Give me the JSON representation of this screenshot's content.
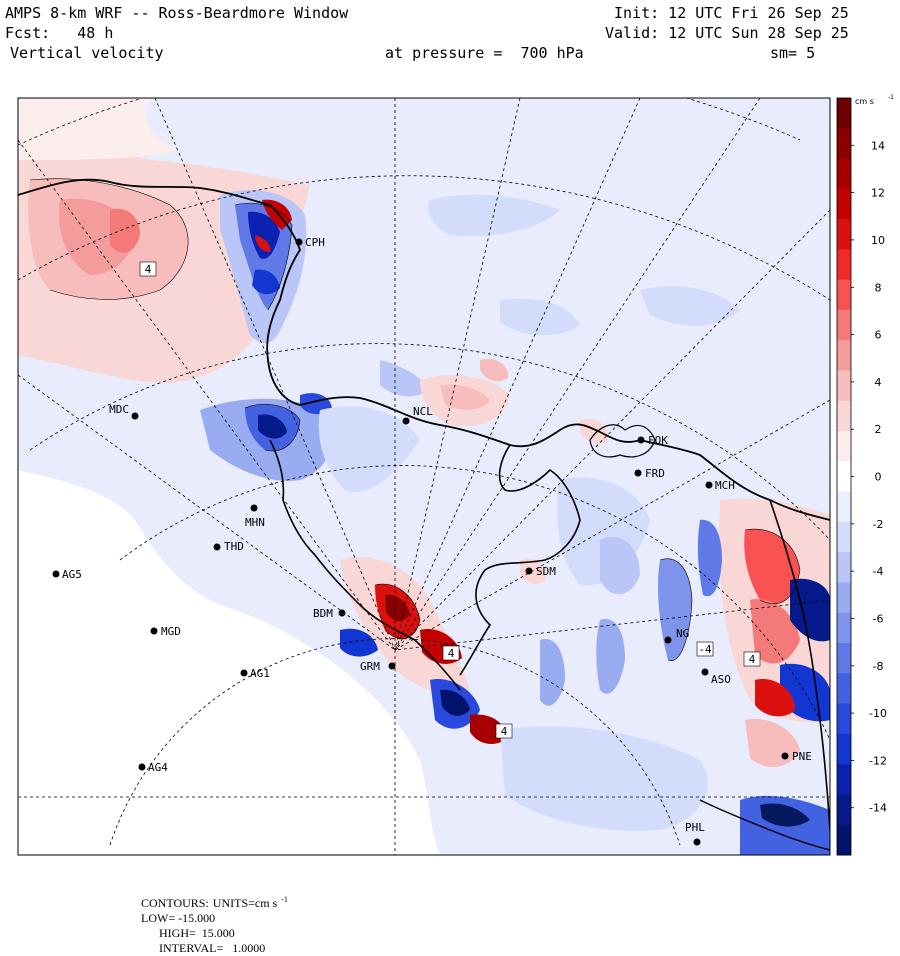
{
  "header": {
    "model_title": "AMPS 8-km WRF -- Ross-Beardmore Window",
    "init": "Init: 12 UTC Fri 26 Sep 25",
    "forecast": "Fcst:   48 h",
    "valid": "Valid: 12 UTC Sun 28 Sep 25",
    "field": "Vertical velocity",
    "pressure": "at pressure =  700 hPa",
    "smoothing": "sm= 5"
  },
  "colorbar": {
    "units_label": "cm s",
    "units_exp": "-1",
    "ticks": [
      "14",
      "12",
      "10",
      "8",
      "6",
      "4",
      "2",
      "0",
      "-2",
      "-4",
      "-6",
      "-8",
      "-10",
      "-12",
      "-14"
    ],
    "colors_top_to_bottom": [
      "#6b0000",
      "#8a0000",
      "#a80000",
      "#c40000",
      "#dd1010",
      "#f02a2a",
      "#f85252",
      "#f47a7a",
      "#f49c9c",
      "#f7bcbc",
      "#fad7d7",
      "#fdeeee",
      "#ffffff",
      "#eaeefd",
      "#d4dcfb",
      "#b9c6f7",
      "#9aacf1",
      "#7d93ec",
      "#5f79e6",
      "#4262e2",
      "#2949dc",
      "#1236d2",
      "#0b22b0",
      "#061a8c",
      "#03126a"
    ]
  },
  "stations": [
    {
      "id": "CPH",
      "label": "CPH"
    },
    {
      "id": "NCL",
      "label": "NCL"
    },
    {
      "id": "FOK",
      "label": "FOK"
    },
    {
      "id": "FRD",
      "label": "FRD"
    },
    {
      "id": "MCH",
      "label": "MCH"
    },
    {
      "id": "MDC",
      "label": "MDC"
    },
    {
      "id": "MHN",
      "label": "MHN"
    },
    {
      "id": "THD",
      "label": "THD"
    },
    {
      "id": "AG5",
      "label": "AG5"
    },
    {
      "id": "SDM",
      "label": "SDM"
    },
    {
      "id": "BDM",
      "label": "BDM"
    },
    {
      "id": "MGD",
      "label": "MGD"
    },
    {
      "id": "AG1",
      "label": "AG1"
    },
    {
      "id": "GRM",
      "label": "GRM"
    },
    {
      "id": "NG",
      "label": "NG"
    },
    {
      "id": "ASO",
      "label": "ASO"
    },
    {
      "id": "AG4",
      "label": "AG4"
    },
    {
      "id": "PNE",
      "label": "PNE"
    },
    {
      "id": "PHL",
      "label": "PHL"
    }
  ],
  "contour_labels": [
    "4",
    "4",
    "-4",
    "4",
    "4"
  ],
  "footer": {
    "contours_label": "CONTOURS:",
    "units_label": "UNITS=cm s",
    "units_exp": "-1",
    "low": "LOW= -15.000",
    "high": "HIGH=  15.000",
    "interval": "INTERVAL=   1.0000"
  }
}
